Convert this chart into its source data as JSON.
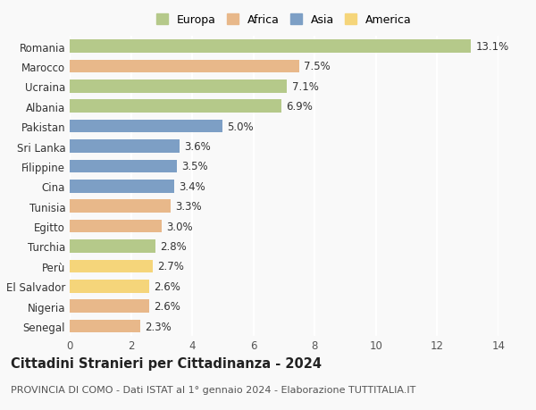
{
  "categories": [
    "Romania",
    "Marocco",
    "Ucraina",
    "Albania",
    "Pakistan",
    "Sri Lanka",
    "Filippine",
    "Cina",
    "Tunisia",
    "Egitto",
    "Turchia",
    "Perù",
    "El Salvador",
    "Nigeria",
    "Senegal"
  ],
  "values": [
    13.1,
    7.5,
    7.1,
    6.9,
    5.0,
    3.6,
    3.5,
    3.4,
    3.3,
    3.0,
    2.8,
    2.7,
    2.6,
    2.6,
    2.3
  ],
  "continents": [
    "Europa",
    "Africa",
    "Europa",
    "Europa",
    "Asia",
    "Asia",
    "Asia",
    "Asia",
    "Africa",
    "Africa",
    "Europa",
    "America",
    "America",
    "Africa",
    "Africa"
  ],
  "colors": {
    "Europa": "#b5c98a",
    "Africa": "#e8b88a",
    "Asia": "#7d9fc5",
    "America": "#f5d57a"
  },
  "legend_order": [
    "Europa",
    "Africa",
    "Asia",
    "America"
  ],
  "xlim": [
    0,
    14
  ],
  "xticks": [
    0,
    2,
    4,
    6,
    8,
    10,
    12,
    14
  ],
  "title": "Cittadini Stranieri per Cittadinanza - 2024",
  "subtitle": "PROVINCIA DI COMO - Dati ISTAT al 1° gennaio 2024 - Elaborazione TUTTITALIA.IT",
  "background_color": "#f9f9f9",
  "grid_color": "#ffffff",
  "label_fontsize": 8.5,
  "value_fontsize": 8.5,
  "title_fontsize": 10.5,
  "subtitle_fontsize": 8.0
}
